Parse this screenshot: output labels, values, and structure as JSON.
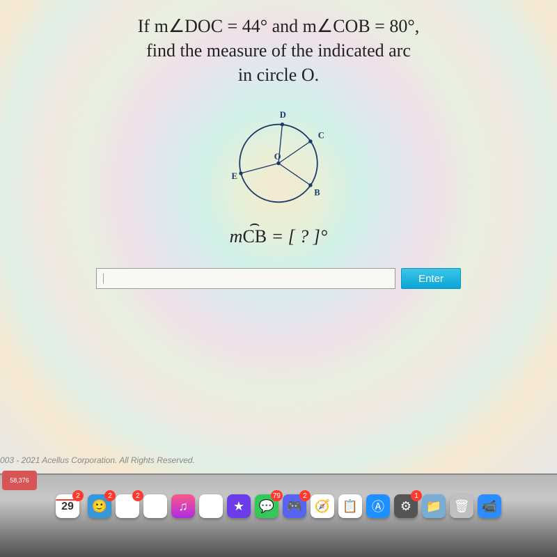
{
  "problem": {
    "line1_prefix": "If ",
    "line1_var1": "m",
    "line1_angle1": "DOC",
    "line1_eq1": " = 44° and ",
    "line1_var2": "m",
    "line1_angle2": "COB",
    "line1_eq2": " = 80°,",
    "line2": "find the measure of the indicated arc",
    "line3": "in circle O."
  },
  "diagram": {
    "circle_stroke": "#1a3a6a",
    "circle_stroke_width": 2,
    "center_label": "O",
    "points": {
      "D": {
        "label": "D",
        "angle": 85
      },
      "C": {
        "label": "C",
        "angle": 35
      },
      "B": {
        "label": "B",
        "angle": 325
      },
      "E": {
        "label": "E",
        "angle": 195
      }
    },
    "label_color": "#1a3a6a",
    "label_fontsize": 14
  },
  "question": {
    "prefix": "m",
    "arc": "CB",
    "suffix": " = [ ? ]°"
  },
  "input": {
    "placeholder": "|",
    "enter_label": "Enter"
  },
  "copyright": "003 - 2021 Acellus Corporation. All Rights Reserved.",
  "dock": {
    "corner_badge": "58,376",
    "calendar_day": "29",
    "calendar_badge": "2",
    "icons": [
      {
        "name": "finder",
        "bg": "#3498db",
        "glyph": "🙂",
        "badge": "2"
      },
      {
        "name": "pages",
        "bg": "#ffffff",
        "glyph": "✎",
        "badge": "2"
      },
      {
        "name": "preview",
        "bg": "#ffffff",
        "glyph": "🖼",
        "badge": ""
      },
      {
        "name": "music",
        "bg": "linear-gradient(#fa5a8a,#b02ae0)",
        "glyph": "♫",
        "badge": ""
      },
      {
        "name": "photos",
        "bg": "#ffffff",
        "glyph": "✿",
        "badge": ""
      },
      {
        "name": "imovie",
        "bg": "#6a3de8",
        "glyph": "★",
        "badge": ""
      },
      {
        "name": "messages",
        "bg": "#34c759",
        "glyph": "💬",
        "badge": "79"
      },
      {
        "name": "discord",
        "bg": "#5865f2",
        "glyph": "🎮",
        "badge": "2"
      },
      {
        "name": "safari",
        "bg": "#ffffff",
        "glyph": "🧭",
        "badge": ""
      },
      {
        "name": "notes",
        "bg": "#ffffff",
        "glyph": "📋",
        "badge": ""
      },
      {
        "name": "appstore",
        "bg": "#1e90ff",
        "glyph": "Ⓐ",
        "badge": ""
      },
      {
        "name": "settings",
        "bg": "#555",
        "glyph": "⚙",
        "badge": "1"
      },
      {
        "name": "folder",
        "bg": "#7aadd4",
        "glyph": "📁",
        "badge": ""
      },
      {
        "name": "trash",
        "bg": "#c0c0c0",
        "glyph": "🗑",
        "badge": ""
      },
      {
        "name": "zoom",
        "bg": "#2d8cff",
        "glyph": "📹",
        "badge": ""
      }
    ]
  }
}
